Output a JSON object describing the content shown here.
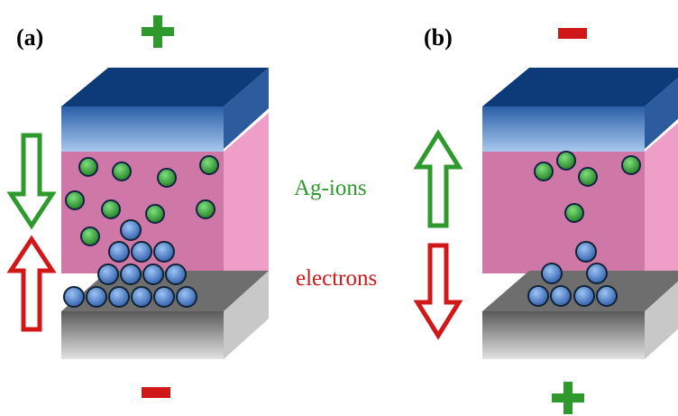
{
  "panels": [
    {
      "label": "(a)"
    },
    {
      "label": "(b)"
    }
  ],
  "legend": {
    "ions": "Ag-ions",
    "electrons": "electrons"
  }
}
